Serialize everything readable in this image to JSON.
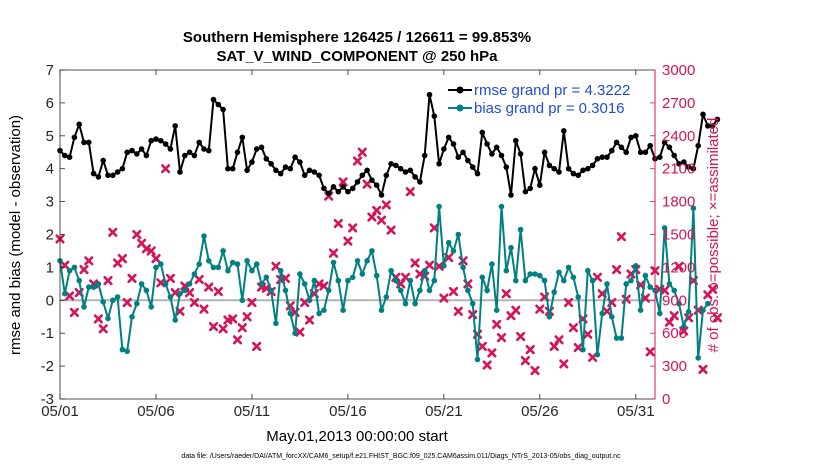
{
  "chart_data": {
    "type": "line",
    "title": "Southern Hemisphere 126425 / 126611 = 99.853%",
    "subtitle": "SAT_V_WIND_COMPONENT @ 250 hPa",
    "xlabel": "May.01,2013 00:00:00 start",
    "ylabel_left": "rmse and bias (model - observation)",
    "ylabel_right": "# of obs: o=possible; ×=assimilated",
    "footnote": "data file: /Users/raeder/DAI/ATM_forcXX/CAM6_setup/f.e21.FHIST_BGC.f09_025.CAM6assim.011/Diags_NTrS_2013-05/obs_diag_output.nc",
    "x_tick_labels": [
      "05/01",
      "05/06",
      "05/11",
      "05/16",
      "05/21",
      "05/26",
      "05/31"
    ],
    "x_tick_days": [
      1,
      6,
      11,
      16,
      21,
      26,
      31
    ],
    "xlim": [
      1,
      32
    ],
    "ylim_left": [
      -3,
      7
    ],
    "yticks_left": [
      "-3",
      "-2",
      "-1",
      "0",
      "1",
      "2",
      "3",
      "4",
      "5",
      "6",
      "7"
    ],
    "ylim_right": [
      0,
      3000
    ],
    "yticks_right": [
      "0",
      "300",
      "600",
      "900",
      "1200",
      "1500",
      "1800",
      "2100",
      "2400",
      "2700",
      "3000"
    ],
    "zero_line": 0,
    "legend": {
      "placement": "top-right",
      "entries": [
        "rmse grand pr = 4.3222",
        "bias grand pr = 0.3016"
      ]
    },
    "colors": {
      "rmse": "#000000",
      "bias": "#008080",
      "obs": "#d4145a",
      "right_axis": "#d4145a",
      "legend_text": "#1f4fd6",
      "zero_line": "#b3b3b3"
    },
    "series": [
      {
        "name": "rmse grand pr = 4.3222",
        "x_start": 1,
        "dx": 0.25,
        "values": [
          4.55,
          4.4,
          4.35,
          4.95,
          5.35,
          4.8,
          4.8,
          3.85,
          3.75,
          4.25,
          3.8,
          3.8,
          3.9,
          4.0,
          4.5,
          4.55,
          4.45,
          4.6,
          4.4,
          4.85,
          4.9,
          4.85,
          4.75,
          4.6,
          5.3,
          3.9,
          4.4,
          4.5,
          4.4,
          4.8,
          4.6,
          4.55,
          6.1,
          5.95,
          5.8,
          4.0,
          4.0,
          4.5,
          4.95,
          3.95,
          4.2,
          4.6,
          4.65,
          4.3,
          4.15,
          3.95,
          3.85,
          4.05,
          4.0,
          4.35,
          4.2,
          3.8,
          3.95,
          3.9,
          3.8,
          3.4,
          3.25,
          3.45,
          3.3,
          3.45,
          3.3,
          3.4,
          3.6,
          3.8,
          3.95,
          3.65,
          3.5,
          3.2,
          3.8,
          4.15,
          4.1,
          4.0,
          3.9,
          3.95,
          3.75,
          3.6,
          4.4,
          6.25,
          5.6,
          4.15,
          4.6,
          4.95,
          4.75,
          4.35,
          4.5,
          4.25,
          4.05,
          3.85,
          5.1,
          4.75,
          4.45,
          4.65,
          4.4,
          4.05,
          3.2,
          4.85,
          4.45,
          3.3,
          3.4,
          4.0,
          3.5,
          4.5,
          4.1,
          4.0,
          3.9,
          5.15,
          4.0,
          3.85,
          3.8,
          3.95,
          4.0,
          4.1,
          4.3,
          4.35,
          4.35,
          4.55,
          4.8,
          4.65,
          4.5,
          4.95,
          5.0,
          4.5,
          4.5,
          4.7,
          4.3,
          4.35,
          4.8,
          4.65,
          4.4,
          4.15,
          4.2,
          4.05,
          4.0,
          4.7,
          5.65,
          5.3,
          5.3,
          5.5
        ]
      },
      {
        "name": "bias grand pr = 0.3016",
        "x_start": 1,
        "dx": 0.25,
        "values": [
          1.2,
          0.2,
          0.9,
          1.0,
          0.6,
          -0.2,
          0.4,
          0.4,
          0.5,
          -0.05,
          -0.55,
          0.0,
          0.1,
          -1.5,
          -1.55,
          -0.5,
          -0.1,
          0.5,
          0.3,
          -0.2,
          1.0,
          1.1,
          0.5,
          0.1,
          -0.6,
          0.2,
          0.3,
          0.5,
          0.8,
          1.1,
          1.95,
          1.2,
          1.0,
          1.0,
          1.5,
          0.9,
          1.15,
          1.1,
          0.0,
          1.2,
          0.9,
          1.1,
          0.5,
          0.7,
          0.3,
          -0.7,
          0.9,
          0.3,
          -0.4,
          -1.0,
          0.8,
          0.5,
          0.0,
          0.6,
          -0.4,
          -0.3,
          0.3,
          1.15,
          0.6,
          -0.3,
          0.6,
          0.7,
          1.2,
          0.8,
          1.2,
          1.5,
          0.75,
          -0.3,
          0.1,
          0.9,
          0.6,
          0.3,
          -0.1,
          0.6,
          -0.1,
          0.3,
          0.9,
          0.3,
          0.6,
          2.85,
          1.05,
          1.75,
          1.5,
          2.0,
          1.0,
          0.3,
          -0.1,
          -1.8,
          0.7,
          0.3,
          1.1,
          -0.3,
          2.85,
          0.9,
          1.6,
          0.6,
          2.15,
          0.6,
          0.8,
          0.8,
          0.75,
          0.6,
          -0.5,
          0.25,
          0.85,
          0.6,
          1.0,
          0.7,
          0.1,
          -1.5,
          0.9,
          0.6,
          -1.65,
          -0.4,
          0.5,
          -0.5,
          -1.15,
          -1.15,
          0.5,
          0.6,
          1.05,
          -0.3,
          0.75,
          0.4,
          0.3,
          -0.4,
          2.2,
          0.5,
          0.3,
          -0.1,
          -0.8,
          -0.35,
          2.8,
          -1.75,
          -0.3,
          -0.1
        ]
      },
      {
        "name": "",
        "type": "scatter",
        "marker": "x",
        "x_start": 1,
        "dx": 0.25,
        "values": [
          1460,
          1220,
          940,
          790,
          970,
          1180,
          1260,
          1050,
          730,
          640,
          1080,
          1520,
          1240,
          1280,
          880,
          1100,
          1500,
          1420,
          1370,
          1350,
          1280,
          1060,
          2100,
          1100,
          970,
          800,
          1030,
          970,
          880,
          1090,
          820,
          1020,
          660,
          980,
          640,
          720,
          730,
          540,
          650,
          750,
          880,
          480,
          1020,
          1010,
          980,
          1210,
          1090,
          1100,
          850,
          790,
          610,
          880,
          720,
          960,
          1050,
          1030,
          1850,
          1330,
          1600,
          1980,
          1440,
          1560,
          2170,
          2250,
          1960,
          1660,
          1720,
          1630,
          1770,
          1540,
          1110,
          1050,
          1110,
          1890,
          1240,
          1140,
          1120,
          1220,
          1560,
          1210,
          920,
          1290,
          980,
          800,
          1260,
          1050,
          770,
          590,
          480,
          310,
          420,
          680,
          560,
          960,
          760,
          810,
          570,
          350,
          450,
          260,
          820,
          930,
          800,
          480,
          540,
          320,
          880,
          650,
          470,
          730,
          590,
          380,
          1110,
          960,
          800,
          880,
          1180,
          1480,
          910,
          1140,
          1180,
          1040,
          920,
          430,
          1170,
          1000,
          990,
          700,
          760,
          1210,
          620,
          740,
          1080,
          810,
          270,
          950,
          1000,
          740
        ]
      }
    ]
  }
}
